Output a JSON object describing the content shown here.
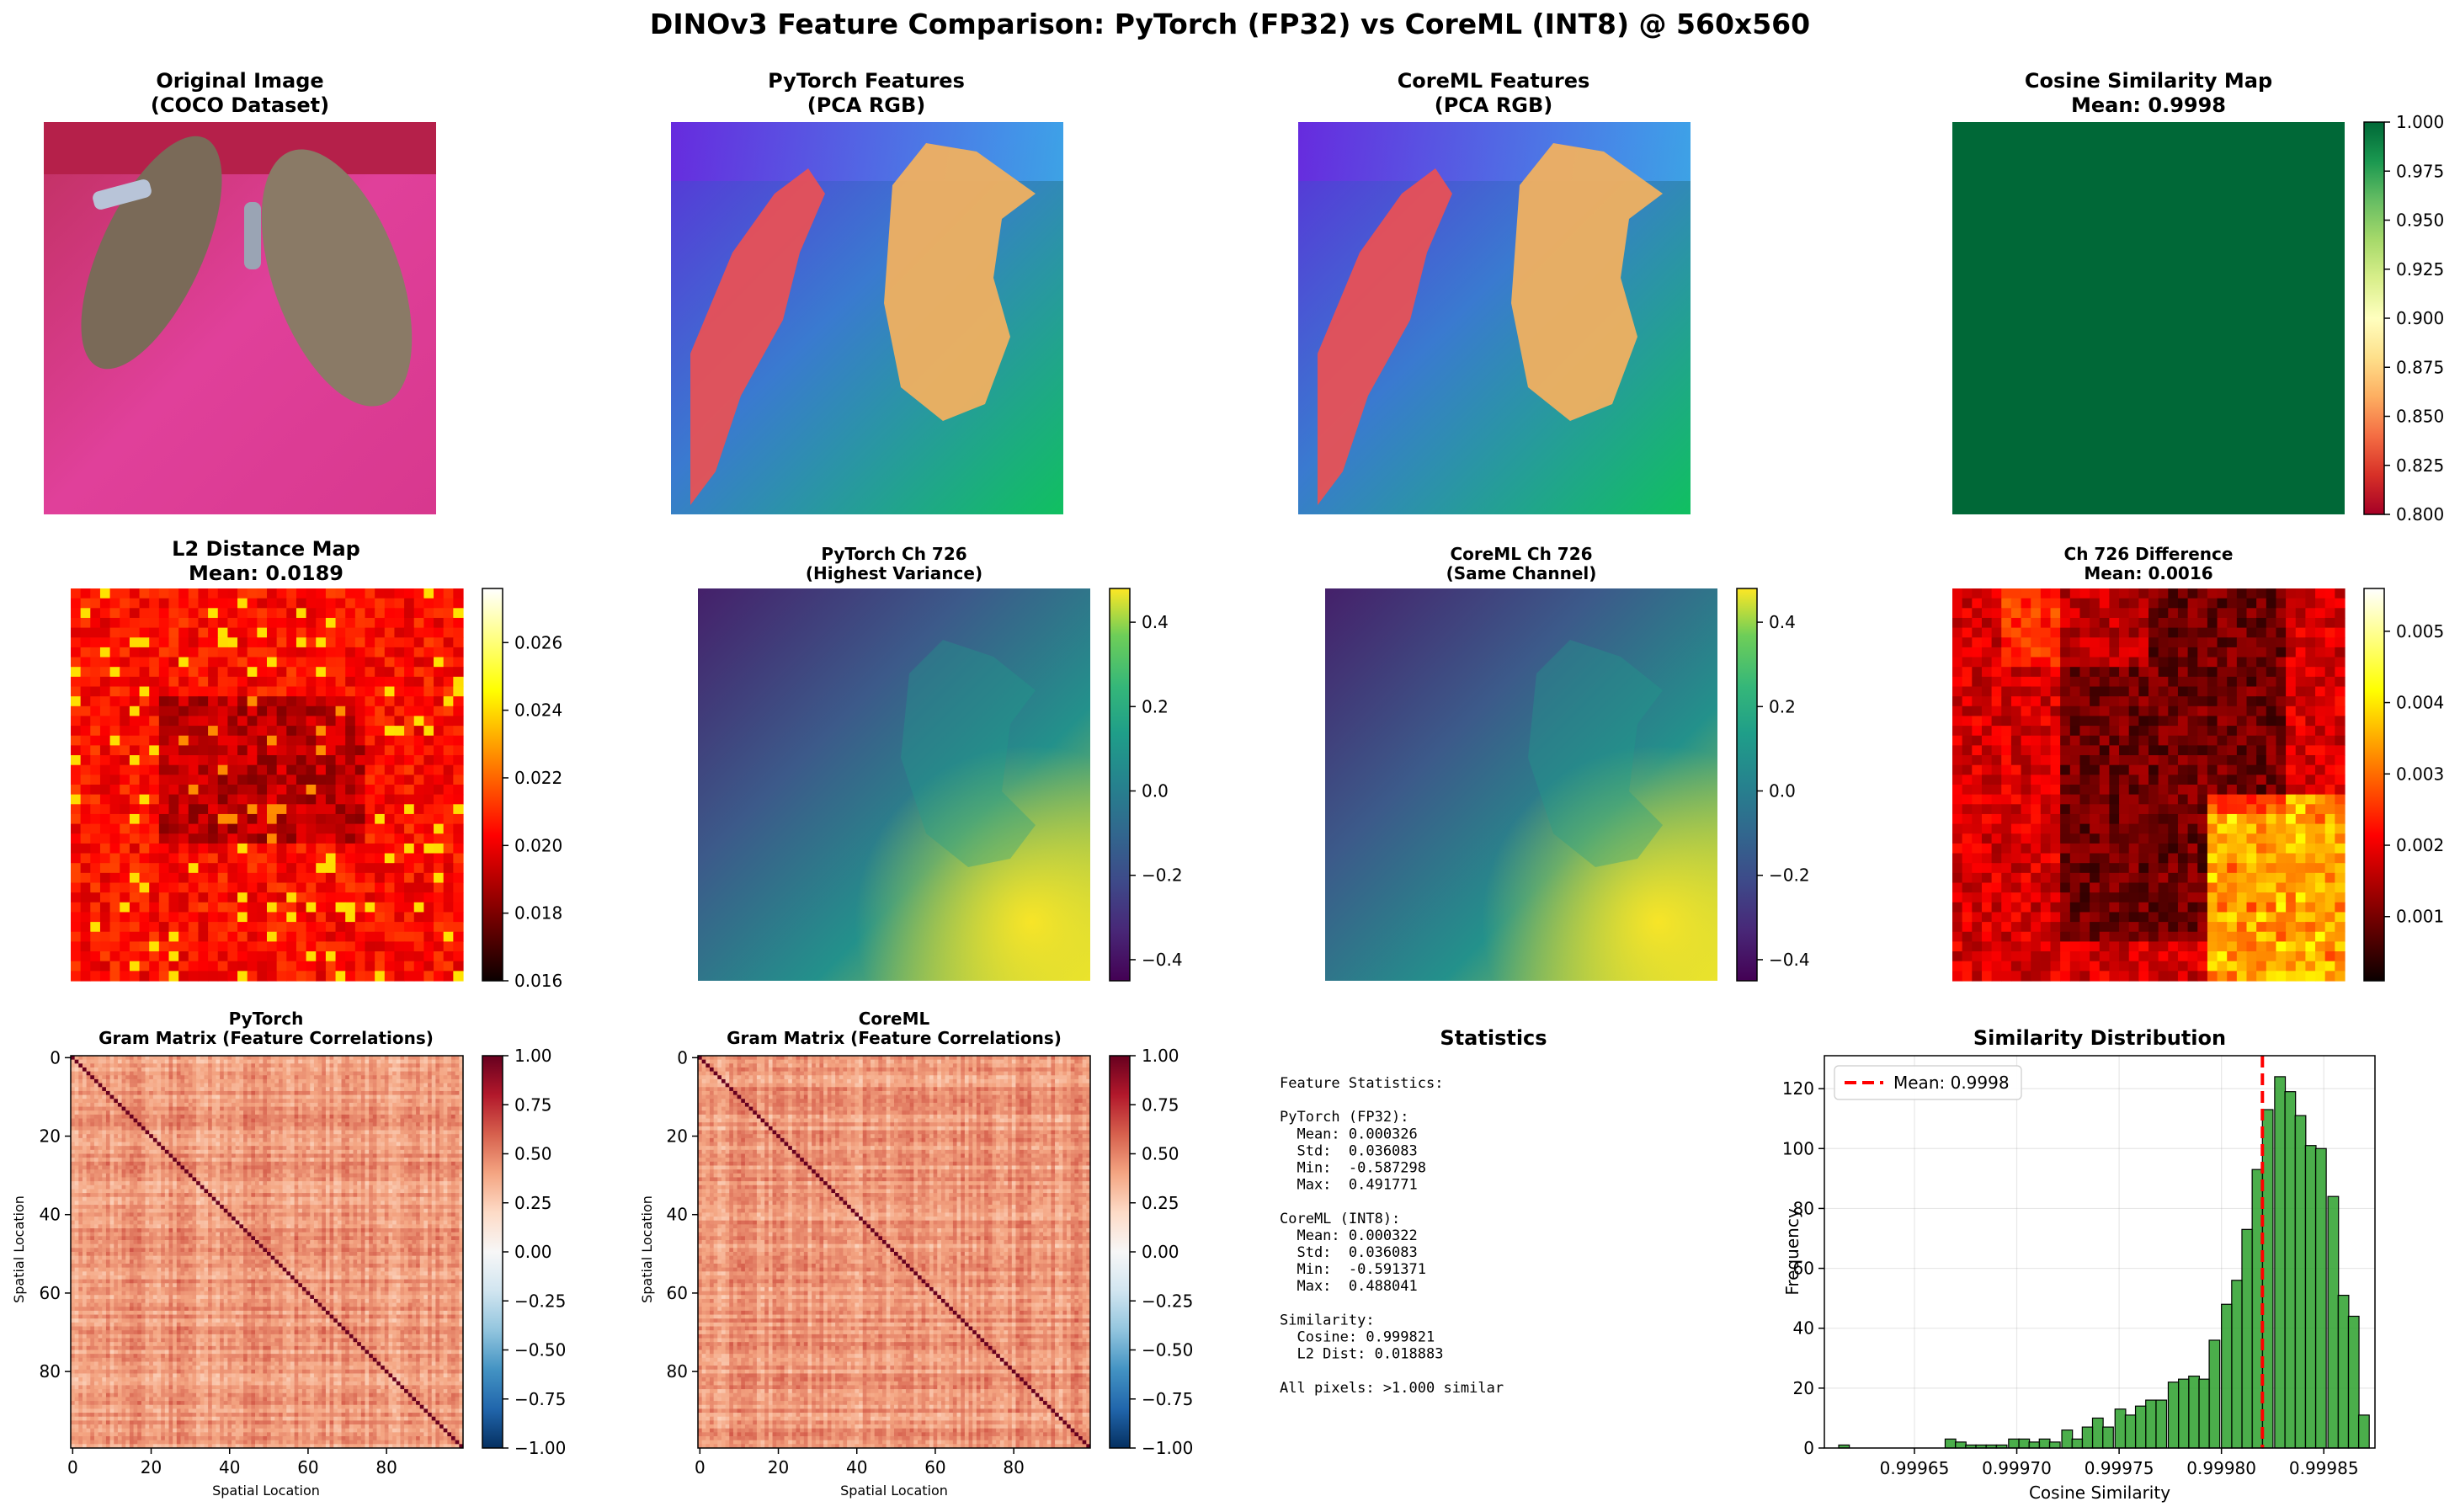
{
  "suptitle": "DINOv3 Feature Comparison: PyTorch (FP32) vs CoreML (INT8) @ 560x560",
  "panels": {
    "original": {
      "title1": "Original Image",
      "title2": "(COCO Dataset)"
    },
    "pt_pca": {
      "title1": "PyTorch Features",
      "title2": "(PCA RGB)"
    },
    "cm_pca": {
      "title1": "CoreML Features",
      "title2": "(PCA RGB)"
    },
    "cos_map": {
      "title1": "Cosine Similarity Map",
      "title2": "Mean: 0.9998",
      "ticks": [
        "0.800",
        "0.825",
        "0.850",
        "0.875",
        "0.900",
        "0.925",
        "0.950",
        "0.975",
        "1.000"
      ]
    },
    "l2_map": {
      "title1": "L2 Distance Map",
      "title2": "Mean: 0.0189",
      "ticks": [
        "0.016",
        "0.018",
        "0.020",
        "0.022",
        "0.024",
        "0.026"
      ]
    },
    "pt_ch": {
      "title1": "PyTorch Ch 726",
      "title2": "(Highest Variance)",
      "ticks": [
        "−0.4",
        "−0.2",
        "0.0",
        "0.2",
        "0.4"
      ]
    },
    "cm_ch": {
      "title1": "CoreML Ch 726",
      "title2": "(Same Channel)",
      "ticks": [
        "−0.4",
        "−0.2",
        "0.0",
        "0.2",
        "0.4"
      ]
    },
    "ch_diff": {
      "title1": "Ch 726 Difference",
      "title2": "Mean: 0.0016",
      "ticks": [
        "0.001",
        "0.002",
        "0.003",
        "0.004",
        "0.005"
      ]
    },
    "pt_gram": {
      "title1": "PyTorch",
      "title2": "Gram Matrix (Feature Correlations)",
      "xlabel": "Spatial Location",
      "ylabel": "Spatial Location",
      "xticks": [
        "0",
        "20",
        "40",
        "60",
        "80"
      ],
      "yticks": [
        "0",
        "20",
        "40",
        "60",
        "80"
      ],
      "cticks": [
        "−1.00",
        "−0.75",
        "−0.50",
        "−0.25",
        "0.00",
        "0.25",
        "0.50",
        "0.75",
        "1.00"
      ]
    },
    "cm_gram": {
      "title1": "CoreML",
      "title2": "Gram Matrix (Feature Correlations)",
      "xlabel": "Spatial Location",
      "ylabel": "Spatial Location",
      "xticks": [
        "0",
        "20",
        "40",
        "60",
        "80"
      ],
      "yticks": [
        "0",
        "20",
        "40",
        "60",
        "80"
      ],
      "cticks": [
        "−1.00",
        "−0.75",
        "−0.50",
        "−0.25",
        "0.00",
        "0.25",
        "0.50",
        "0.75",
        "1.00"
      ]
    },
    "stats": {
      "title": "Statistics",
      "lines": [
        "Feature Statistics:",
        "",
        "PyTorch (FP32):",
        "  Mean: 0.000326",
        "  Std:  0.036083",
        "  Min:  -0.587298",
        "  Max:  0.491771",
        "",
        "CoreML (INT8):",
        "  Mean: 0.000322",
        "  Std:  0.036083",
        "  Min:  -0.591371",
        "  Max:  0.488041",
        "",
        "Similarity:",
        "  Cosine: 0.999821",
        "  L2 Dist: 0.018883",
        "",
        "All pixels: >1.000 similar"
      ]
    },
    "hist": {
      "title": "Similarity Distribution",
      "xlabel": "Cosine Similarity",
      "ylabel": "Frequency",
      "legend": "Mean: 0.9998",
      "xticks": [
        "0.99965",
        "0.99970",
        "0.99975",
        "0.99980",
        "0.99985"
      ],
      "yticks": [
        "0",
        "20",
        "40",
        "60",
        "80",
        "100",
        "120"
      ]
    }
  },
  "colors": {
    "hist_bar": "#2ca02c",
    "mean_line": "#ff0000",
    "cos_fill": "#006837"
  },
  "chart_data": [
    {
      "type": "heatmap",
      "title": "Cosine Similarity Map",
      "mean": 0.9998,
      "colormap": "RdYlGn",
      "clim": [
        0.8,
        1.0
      ]
    },
    {
      "type": "heatmap",
      "title": "L2 Distance Map",
      "mean": 0.0189,
      "colormap": "hot",
      "clim": [
        0.016,
        0.0276
      ]
    },
    {
      "type": "heatmap",
      "title": "PyTorch Ch 726 (Highest Variance)",
      "colormap": "viridis",
      "clim": [
        -0.45,
        0.48
      ]
    },
    {
      "type": "heatmap",
      "title": "CoreML Ch 726 (Same Channel)",
      "colormap": "viridis",
      "clim": [
        -0.45,
        0.48
      ]
    },
    {
      "type": "heatmap",
      "title": "Ch 726 Difference",
      "mean": 0.0016,
      "colormap": "hot",
      "clim": [
        0.0001,
        0.0056
      ]
    },
    {
      "type": "heatmap",
      "title": "PyTorch Gram Matrix (Feature Correlations)",
      "colormap": "RdBu_r",
      "clim": [
        -1,
        1
      ],
      "size": 100
    },
    {
      "type": "heatmap",
      "title": "CoreML Gram Matrix (Feature Correlations)",
      "colormap": "RdBu_r",
      "clim": [
        -1,
        1
      ],
      "size": 100
    },
    {
      "type": "bar",
      "title": "Similarity Distribution",
      "xlabel": "Cosine Similarity",
      "ylabel": "Frequency",
      "xlim": [
        0.999606,
        0.999875
      ],
      "ylim": [
        0,
        131
      ],
      "bin_width": 5.2e-06,
      "grid": true,
      "legend": "upper-left",
      "mean_line": 0.99982,
      "bins": [
        {
          "x": 0.999613,
          "count": 1
        },
        {
          "x": 0.999665,
          "count": 3
        },
        {
          "x": 0.99967,
          "count": 2
        },
        {
          "x": 0.999675,
          "count": 1
        },
        {
          "x": 0.99968,
          "count": 1
        },
        {
          "x": 0.999685,
          "count": 1
        },
        {
          "x": 0.99969,
          "count": 1
        },
        {
          "x": 0.999696,
          "count": 3
        },
        {
          "x": 0.999701,
          "count": 3
        },
        {
          "x": 0.999706,
          "count": 2
        },
        {
          "x": 0.999711,
          "count": 3
        },
        {
          "x": 0.999716,
          "count": 2
        },
        {
          "x": 0.999722,
          "count": 6
        },
        {
          "x": 0.999727,
          "count": 3
        },
        {
          "x": 0.999732,
          "count": 7
        },
        {
          "x": 0.999737,
          "count": 10
        },
        {
          "x": 0.999742,
          "count": 7
        },
        {
          "x": 0.999748,
          "count": 13
        },
        {
          "x": 0.999753,
          "count": 11
        },
        {
          "x": 0.999758,
          "count": 14
        },
        {
          "x": 0.999763,
          "count": 16
        },
        {
          "x": 0.999768,
          "count": 16
        },
        {
          "x": 0.999774,
          "count": 22
        },
        {
          "x": 0.999779,
          "count": 23
        },
        {
          "x": 0.999784,
          "count": 24
        },
        {
          "x": 0.999789,
          "count": 23
        },
        {
          "x": 0.999794,
          "count": 36
        },
        {
          "x": 0.9998,
          "count": 48
        },
        {
          "x": 0.999805,
          "count": 56
        },
        {
          "x": 0.99981,
          "count": 73
        },
        {
          "x": 0.999815,
          "count": 93
        },
        {
          "x": 0.99982,
          "count": 113
        },
        {
          "x": 0.999826,
          "count": 124
        },
        {
          "x": 0.999831,
          "count": 119
        },
        {
          "x": 0.999836,
          "count": 111
        },
        {
          "x": 0.999841,
          "count": 101
        },
        {
          "x": 0.999846,
          "count": 100
        },
        {
          "x": 0.999852,
          "count": 84
        },
        {
          "x": 0.999857,
          "count": 51
        },
        {
          "x": 0.999862,
          "count": 44
        },
        {
          "x": 0.999867,
          "count": 11
        }
      ]
    }
  ]
}
